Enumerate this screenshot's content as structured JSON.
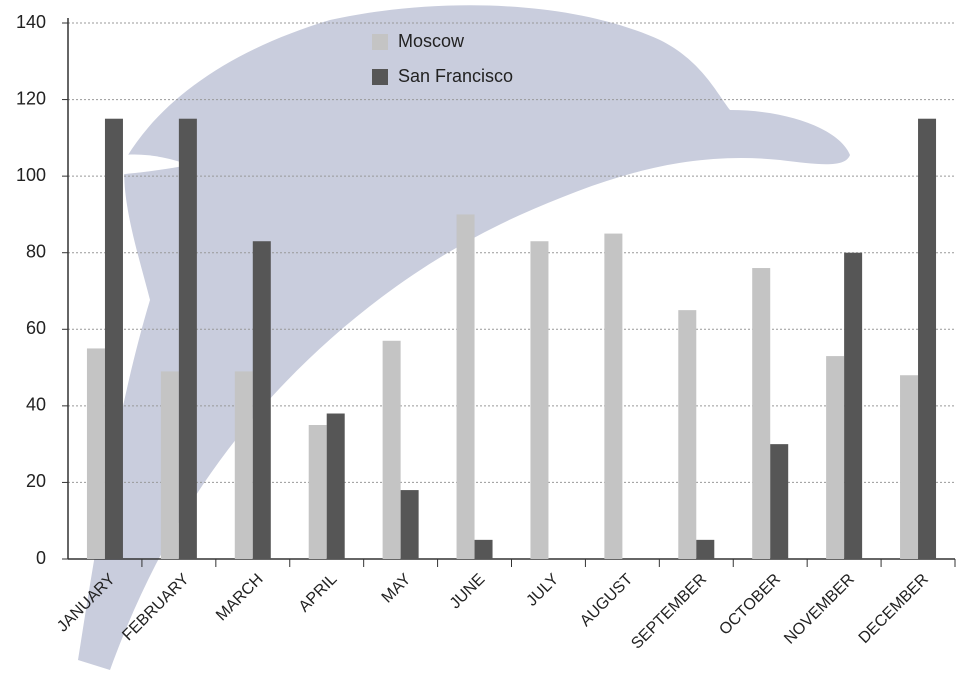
{
  "chart_data": {
    "type": "bar",
    "categories": [
      "JANUARY",
      "FEBRUARY",
      "MARCH",
      "APRIL",
      "MAY",
      "JUNE",
      "JULY",
      "AUGUST",
      "SEPTEMBER",
      "OCTOBER",
      "NOVEMBER",
      "DECEMBER"
    ],
    "series": [
      {
        "name": "Moscow",
        "color": "#c4c4c4",
        "values": [
          55,
          49,
          49,
          35,
          57,
          90,
          83,
          85,
          65,
          76,
          53,
          48
        ]
      },
      {
        "name": "San Francisco",
        "color": "#565656",
        "values": [
          115,
          115,
          83,
          38,
          18,
          5,
          0,
          0,
          5,
          30,
          80,
          115
        ]
      }
    ],
    "ylim": [
      0,
      140
    ],
    "yticks": [
      0,
      20,
      40,
      60,
      80,
      100,
      120,
      140
    ],
    "grid": true
  }
}
